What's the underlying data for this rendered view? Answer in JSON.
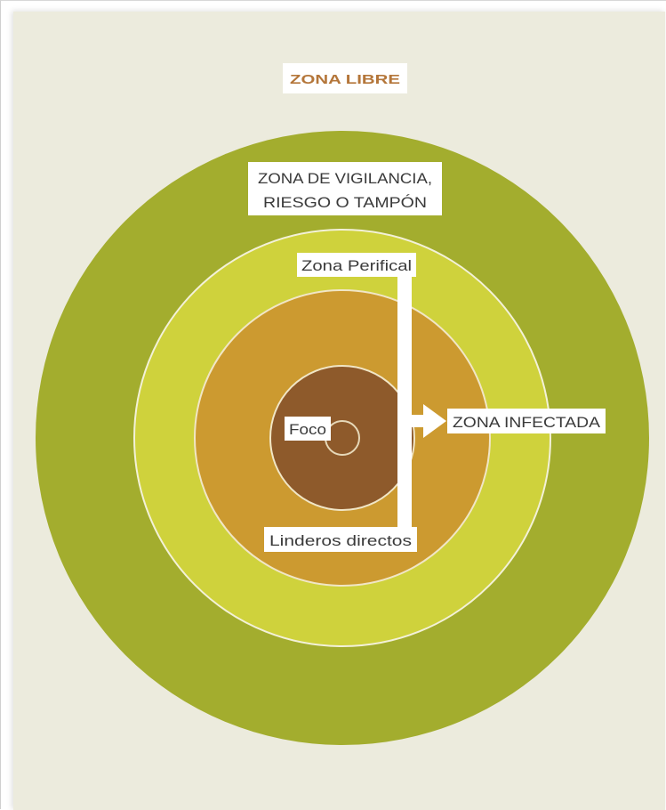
{
  "labels": {
    "free_zone": "ZONA LIBRE",
    "surveillance_zone_line1": "ZONA DE VIGILANCIA,",
    "surveillance_zone_line2": "RIESGO O TAMPÓN",
    "peripheral_zone": "Zona Perifical",
    "focus": "Foco",
    "direct_boundaries": "Linderos directos",
    "infected_zone": "ZONA INFECTADA"
  },
  "colors": {
    "background": "#ecebdd",
    "surveillance_ring": "#a3ad2e",
    "peripheral_ring": "#cfd23c",
    "boundaries_ring": "#cc9a30",
    "focus_circle": "#8e5a2b",
    "free_zone_text": "#b4763a",
    "label_text": "#3a3a3a",
    "bracket": "#ffffff"
  }
}
